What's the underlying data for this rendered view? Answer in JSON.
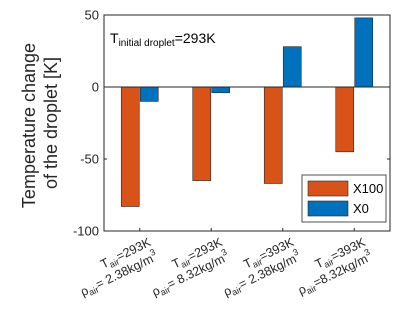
{
  "chart_data": {
    "type": "bar",
    "ylim": [
      -100,
      50
    ],
    "yticks": [
      50,
      0,
      -50,
      -100
    ],
    "ylabel": [
      "Temperature change",
      "of the droplet [K]"
    ],
    "annotation": {
      "main": "T",
      "sub": "initial droplet",
      "rest": "=293K"
    },
    "categories": [
      {
        "t_main": "T",
        "t_sub": "air",
        "t_val": "=293K",
        "rho_main": "ρ",
        "rho_sub": "air",
        "rho_val": "= 2.38kg/m",
        "rho_sup": "3"
      },
      {
        "t_main": "T",
        "t_sub": "air",
        "t_val": "=293K",
        "rho_main": "ρ",
        "rho_sub": "air",
        "rho_val": "= 8.32kg/m",
        "rho_sup": "3"
      },
      {
        "t_main": "T",
        "t_sub": "air",
        "t_val": "=393K",
        "rho_main": "ρ",
        "rho_sub": "air",
        "rho_val": "= 2.38kg/m",
        "rho_sup": "3"
      },
      {
        "t_main": "T",
        "t_sub": "air",
        "t_val": "=393K",
        "rho_main": "ρ",
        "rho_sub": "air",
        "rho_val": "=8.32kg/m",
        "rho_sup": "3"
      }
    ],
    "series": [
      {
        "name": "X100",
        "color": "#D95319",
        "values": [
          -83,
          -65,
          -67,
          -45
        ]
      },
      {
        "name": "X0",
        "color": "#0072BD",
        "values": [
          -10,
          -4,
          28,
          48
        ]
      }
    ],
    "legend": "bottom-right",
    "grid": false
  }
}
